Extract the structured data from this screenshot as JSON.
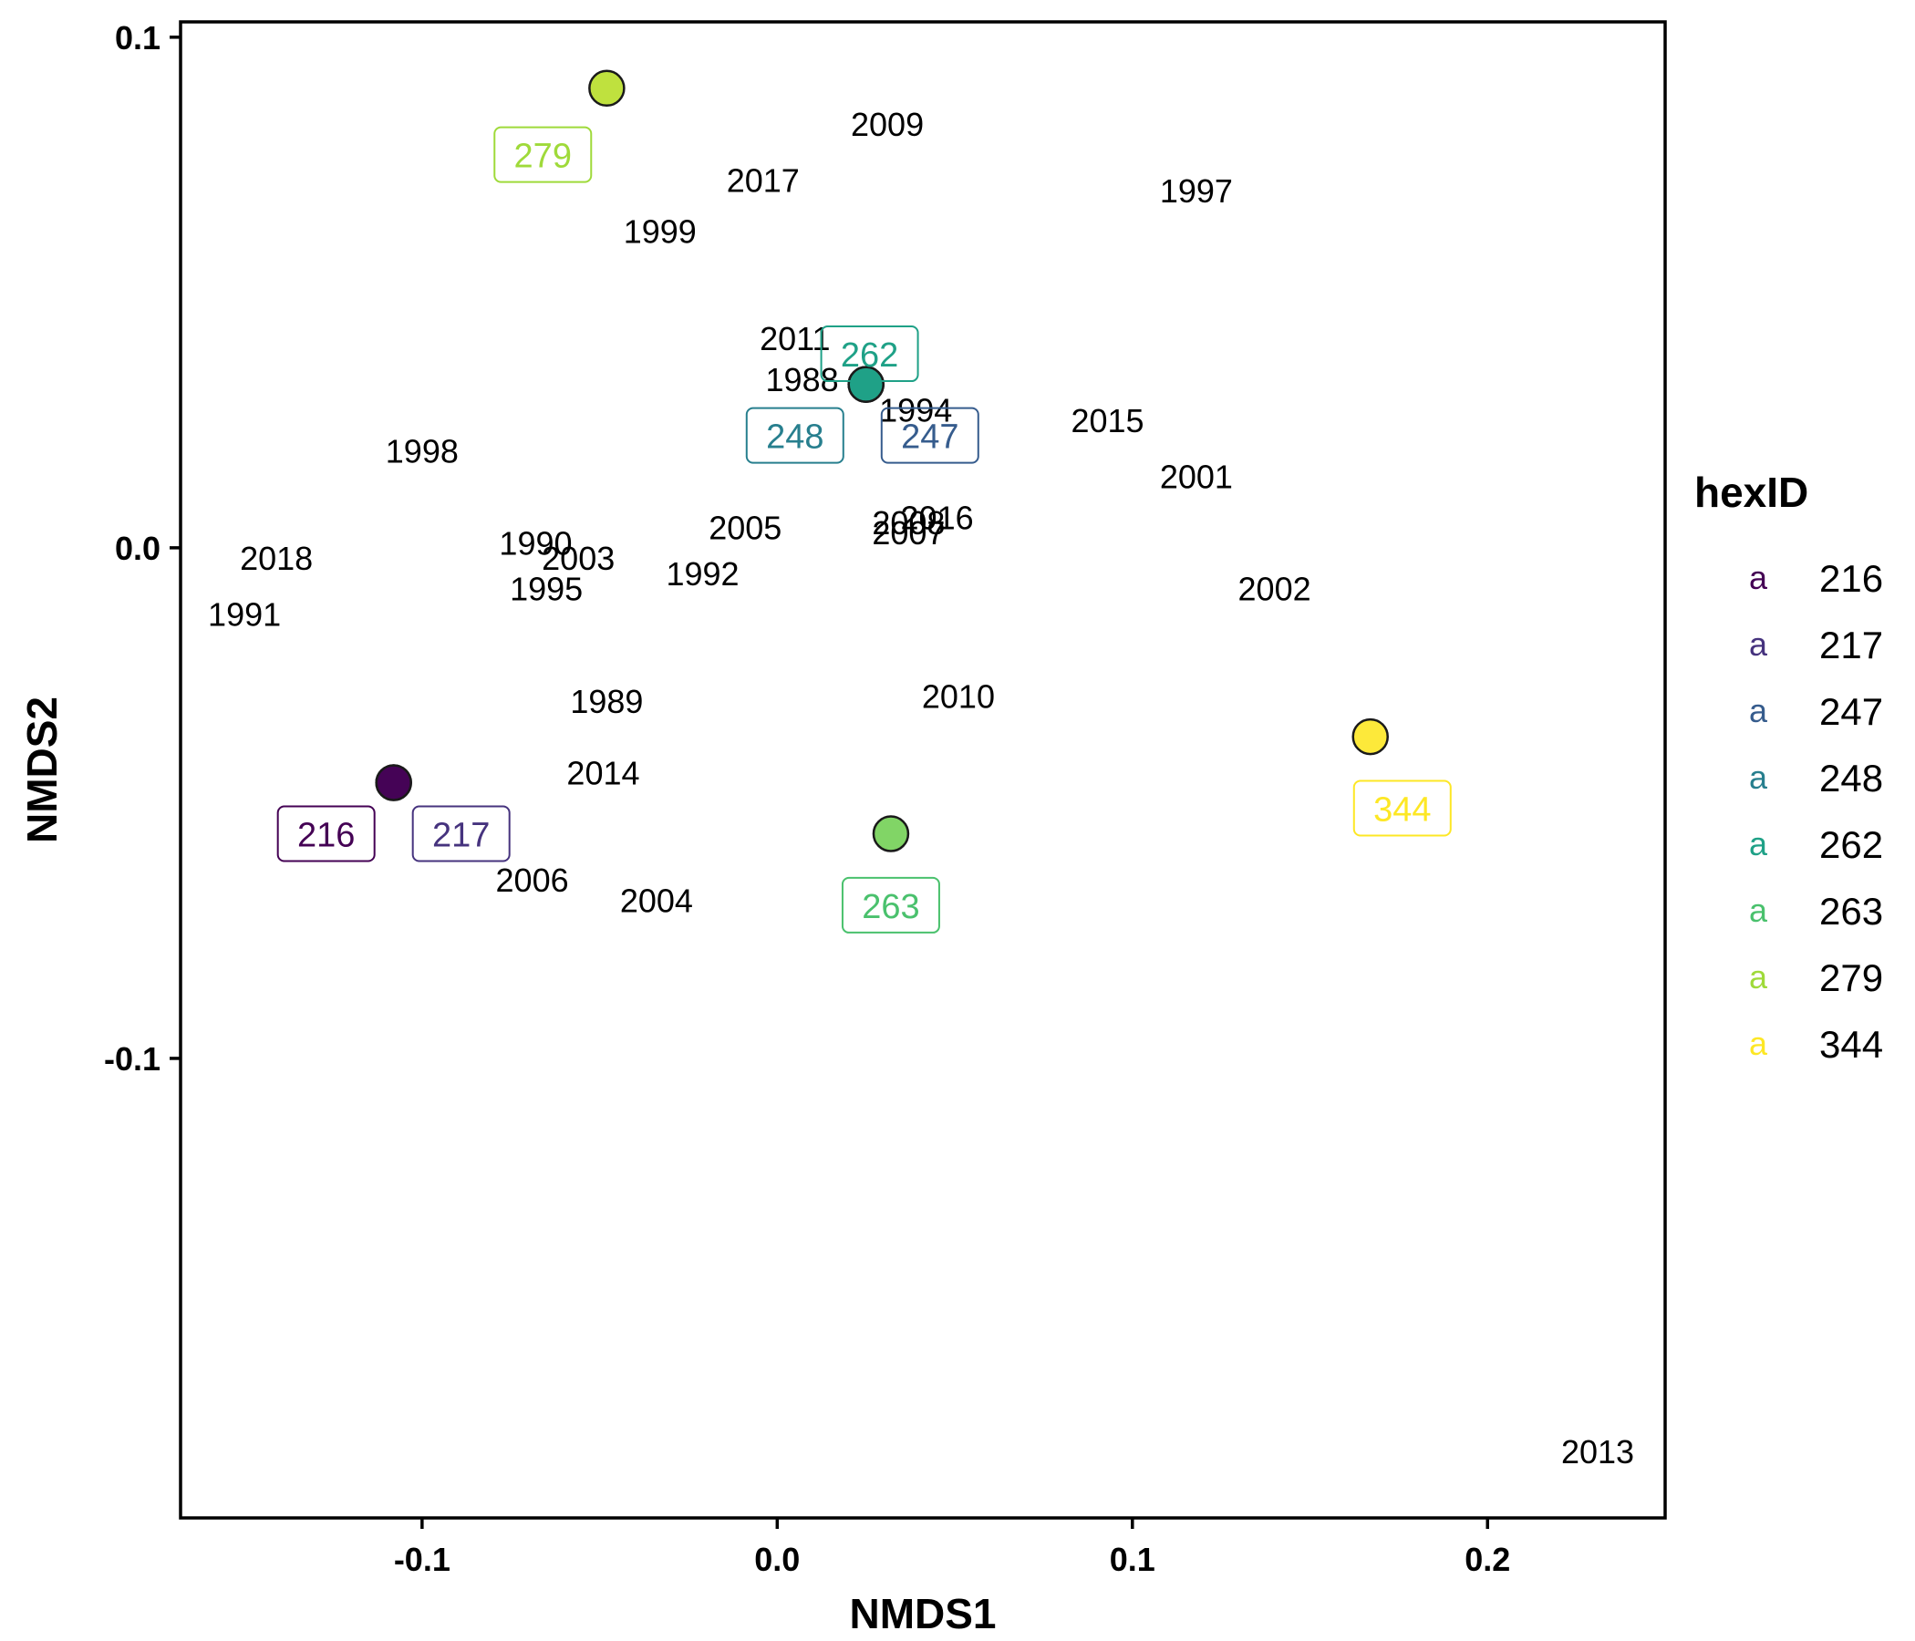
{
  "chart_data": {
    "type": "scatter",
    "xlabel": "NMDS1",
    "ylabel": "NMDS2",
    "xlim": [
      -0.168,
      0.25
    ],
    "ylim": [
      -0.19,
      0.103
    ],
    "x_ticks": [
      {
        "value": -0.1,
        "label": "-0.1"
      },
      {
        "value": 0.0,
        "label": "0.0"
      },
      {
        "value": 0.1,
        "label": "0.1"
      },
      {
        "value": 0.2,
        "label": "0.2"
      }
    ],
    "y_ticks": [
      {
        "value": 0.1,
        "label": "0.1"
      },
      {
        "value": 0.0,
        "label": "0.0"
      },
      {
        "value": -0.1,
        "label": "-0.1"
      }
    ],
    "grid": false,
    "legend": {
      "title": "hexID",
      "placement": "right",
      "key_glyph": "a",
      "entries": [
        {
          "label": "216",
          "color": "#440154"
        },
        {
          "label": "217",
          "color": "#46337E"
        },
        {
          "label": "247",
          "color": "#365C8D"
        },
        {
          "label": "248",
          "color": "#277F8E"
        },
        {
          "label": "262",
          "color": "#1FA187"
        },
        {
          "label": "263",
          "color": "#4AC16D"
        },
        {
          "label": "279",
          "color": "#9FDA3A"
        },
        {
          "label": "344",
          "color": "#FDE725"
        }
      ]
    },
    "sites": [
      {
        "id": "216",
        "x": -0.108,
        "y": -0.046,
        "label_x": -0.127,
        "label_y": -0.056,
        "point_color": "#440154",
        "label_color": "#440154"
      },
      {
        "id": "217",
        "x": -0.108,
        "y": -0.046,
        "label_x": -0.089,
        "label_y": -0.056,
        "point_color": "#440154",
        "label_color": "#46337E"
      },
      {
        "id": "247",
        "x": 0.025,
        "y": 0.032,
        "label_x": 0.043,
        "label_y": 0.022,
        "point_color": "#1FA187",
        "label_color": "#365C8D"
      },
      {
        "id": "248",
        "x": 0.025,
        "y": 0.032,
        "label_x": 0.005,
        "label_y": 0.022,
        "point_color": "#1FA187",
        "label_color": "#277F8E"
      },
      {
        "id": "262",
        "x": 0.025,
        "y": 0.032,
        "label_x": 0.026,
        "label_y": 0.038,
        "point_color": "#1FA187",
        "label_color": "#1FA187"
      },
      {
        "id": "263",
        "x": 0.032,
        "y": -0.056,
        "label_x": 0.032,
        "label_y": -0.07,
        "point_color": "#73D055",
        "label_color": "#4AC16D"
      },
      {
        "id": "279",
        "x": -0.048,
        "y": 0.09,
        "label_x": -0.066,
        "label_y": 0.077,
        "point_color": "#B8DE29",
        "label_color": "#9FDA3A"
      },
      {
        "id": "344",
        "x": 0.167,
        "y": -0.037,
        "label_x": 0.176,
        "label_y": -0.051,
        "point_color": "#FDE725",
        "label_color": "#FDE725"
      }
    ],
    "years": [
      {
        "label": "2009",
        "x": 0.031,
        "y": 0.083
      },
      {
        "label": "2017",
        "x": -0.004,
        "y": 0.072
      },
      {
        "label": "1997",
        "x": 0.118,
        "y": 0.07
      },
      {
        "label": "1999",
        "x": -0.033,
        "y": 0.062
      },
      {
        "label": "2011",
        "x": 0.005,
        "y": 0.041
      },
      {
        "label": "1988",
        "x": 0.007,
        "y": 0.033
      },
      {
        "label": "1994",
        "x": 0.039,
        "y": 0.027
      },
      {
        "label": "2015",
        "x": 0.093,
        "y": 0.025
      },
      {
        "label": "1998",
        "x": -0.1,
        "y": 0.019
      },
      {
        "label": "2001",
        "x": 0.118,
        "y": 0.014
      },
      {
        "label": "2016",
        "x": 0.045,
        "y": 0.006
      },
      {
        "label": "2008",
        "x": 0.037,
        "y": 0.005
      },
      {
        "label": "2007",
        "x": 0.037,
        "y": 0.003
      },
      {
        "label": "2005",
        "x": -0.009,
        "y": 0.004
      },
      {
        "label": "1990",
        "x": -0.068,
        "y": 0.001
      },
      {
        "label": "2003",
        "x": -0.056,
        "y": -0.002
      },
      {
        "label": "2018",
        "x": -0.141,
        "y": -0.002
      },
      {
        "label": "1992",
        "x": -0.021,
        "y": -0.005
      },
      {
        "label": "1995",
        "x": -0.065,
        "y": -0.008
      },
      {
        "label": "2002",
        "x": 0.14,
        "y": -0.008
      },
      {
        "label": "1991",
        "x": -0.15,
        "y": -0.013
      },
      {
        "label": "2010",
        "x": 0.051,
        "y": -0.029
      },
      {
        "label": "1989",
        "x": -0.048,
        "y": -0.03
      },
      {
        "label": "2014",
        "x": -0.049,
        "y": -0.044
      },
      {
        "label": "2006",
        "x": -0.069,
        "y": -0.065
      },
      {
        "label": "2004",
        "x": -0.034,
        "y": -0.069
      },
      {
        "label": "2013",
        "x": 0.231,
        "y": -0.177
      }
    ]
  }
}
